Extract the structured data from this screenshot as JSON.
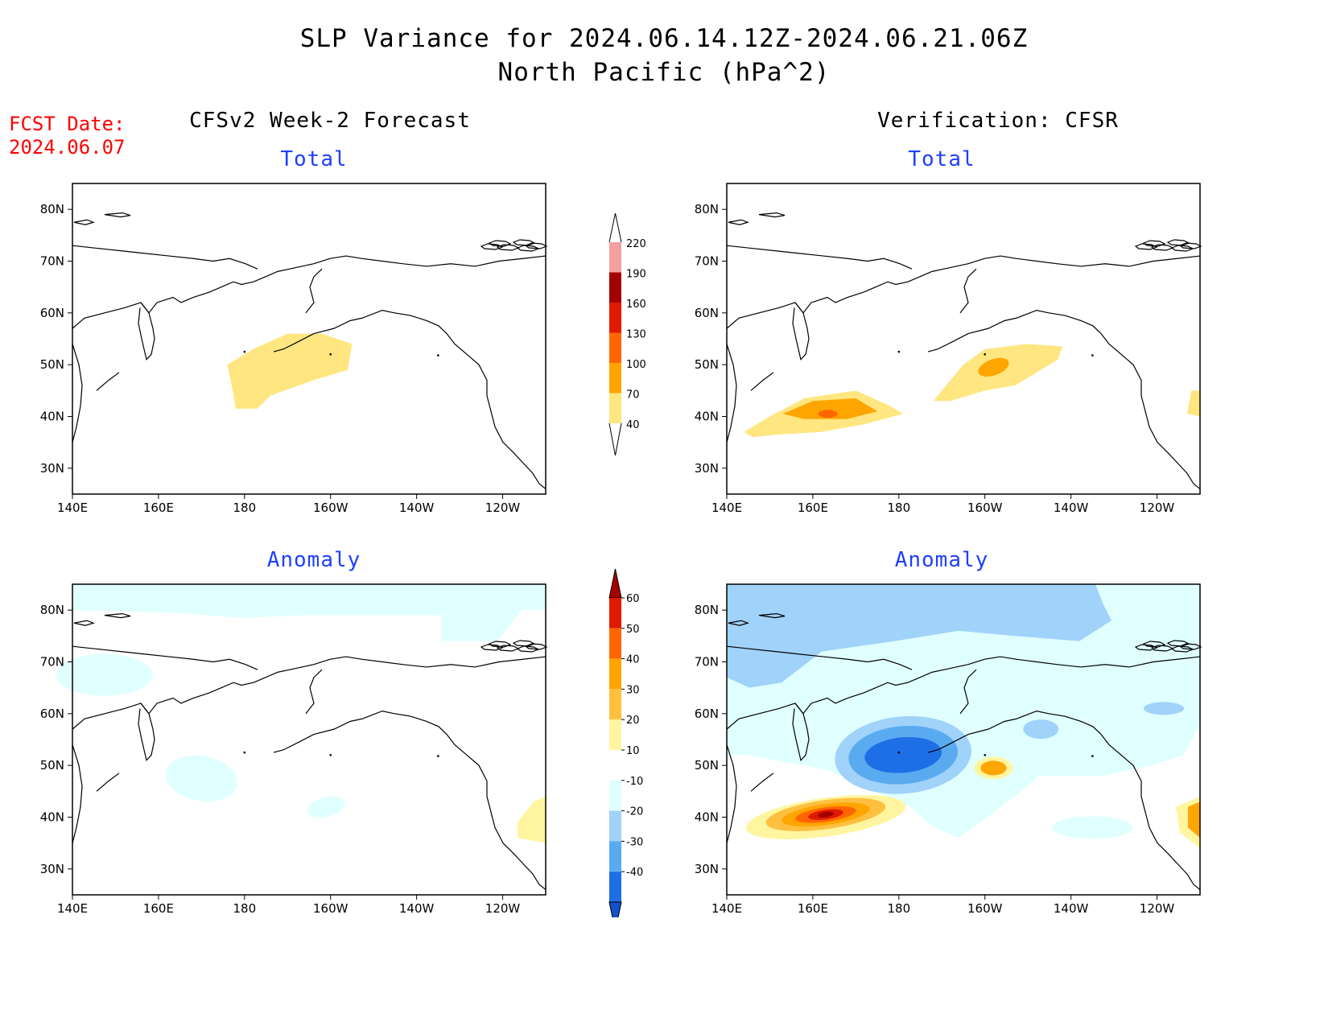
{
  "figure": {
    "title_line1": "SLP Variance for 2024.06.14.12Z-2024.06.21.06Z",
    "title_line2": "North Pacific (hPa^2)",
    "fcst_date_label": "FCST Date:",
    "fcst_date_value": "2024.06.07",
    "left_column_title": "CFSv2 Week-2 Forecast",
    "right_column_title": "Verification: CFSR",
    "row_top_label": "Total",
    "row_bottom_label": "Anomaly"
  },
  "axes": {
    "lat_labels": [
      "80N",
      "70N",
      "60N",
      "50N",
      "40N",
      "30N"
    ],
    "lon_labels": [
      "140E",
      "160E",
      "180",
      "160W",
      "140W",
      "120W"
    ]
  },
  "colorbars": {
    "total": {
      "levels": [
        "40",
        "70",
        "100",
        "130",
        "160",
        "190",
        "220"
      ],
      "colors": [
        "#ffe680",
        "#ffa500",
        "#ff6600",
        "#e01a00",
        "#a50000",
        "#f4a0a0",
        "#fadcdc"
      ]
    },
    "anomaly": {
      "levels": [
        "60",
        "50",
        "40",
        "30",
        "20",
        "10",
        "-10",
        "-20",
        "-30",
        "-40"
      ],
      "colors_top_to_bottom": [
        "#a50000",
        "#e01a00",
        "#ff6600",
        "#ffa500",
        "#ffc040",
        "#fff5a0",
        "#ffffff",
        "#e0ffff",
        "#a0d2fa",
        "#5aaaf0",
        "#1e6ee6",
        "#1450c8"
      ]
    }
  },
  "panels": [
    {
      "id": "forecast-total",
      "type": "total"
    },
    {
      "id": "verification-total",
      "type": "total"
    },
    {
      "id": "forecast-anomaly",
      "type": "anomaly"
    },
    {
      "id": "verification-anomaly",
      "type": "anomaly"
    }
  ]
}
